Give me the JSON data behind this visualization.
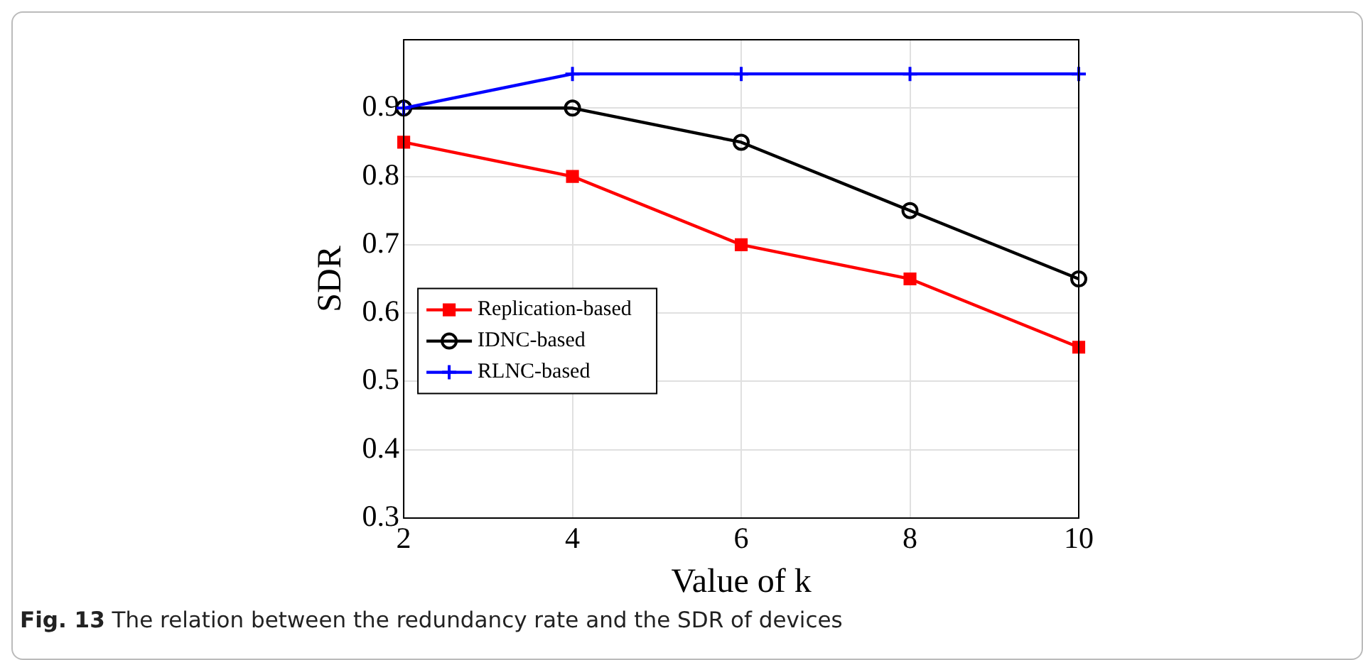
{
  "chart_data": {
    "type": "line",
    "xlabel": "Value of k",
    "ylabel": "SDR",
    "x": [
      2,
      4,
      6,
      8,
      10
    ],
    "xlim": [
      2,
      10
    ],
    "xticks": [
      2,
      4,
      6,
      8,
      10
    ],
    "ylim": [
      0.3,
      1.0
    ],
    "yticks": [
      0.3,
      0.4,
      0.5,
      0.6,
      0.7,
      0.8,
      0.9,
      {
        "value": 1.0,
        "label": null
      }
    ],
    "series": [
      {
        "name": "Replication-based",
        "color": "#ff0000",
        "marker": "square",
        "values": [
          0.85,
          0.8,
          0.7,
          0.65,
          0.55
        ]
      },
      {
        "name": "IDNC-based",
        "color": "#000000",
        "marker": "circle",
        "values": [
          0.9,
          0.9,
          0.85,
          0.75,
          0.65
        ]
      },
      {
        "name": "RLNC-based",
        "color": "#0000ff",
        "marker": "cross",
        "values": [
          0.9,
          0.95,
          0.95,
          0.95,
          0.95
        ]
      }
    ],
    "grid": true,
    "legend": "left",
    "line_style": "solid",
    "annotations": [
      "Fig. 13 The relation between the redundancy rate and the SDR of devices"
    ]
  }
}
